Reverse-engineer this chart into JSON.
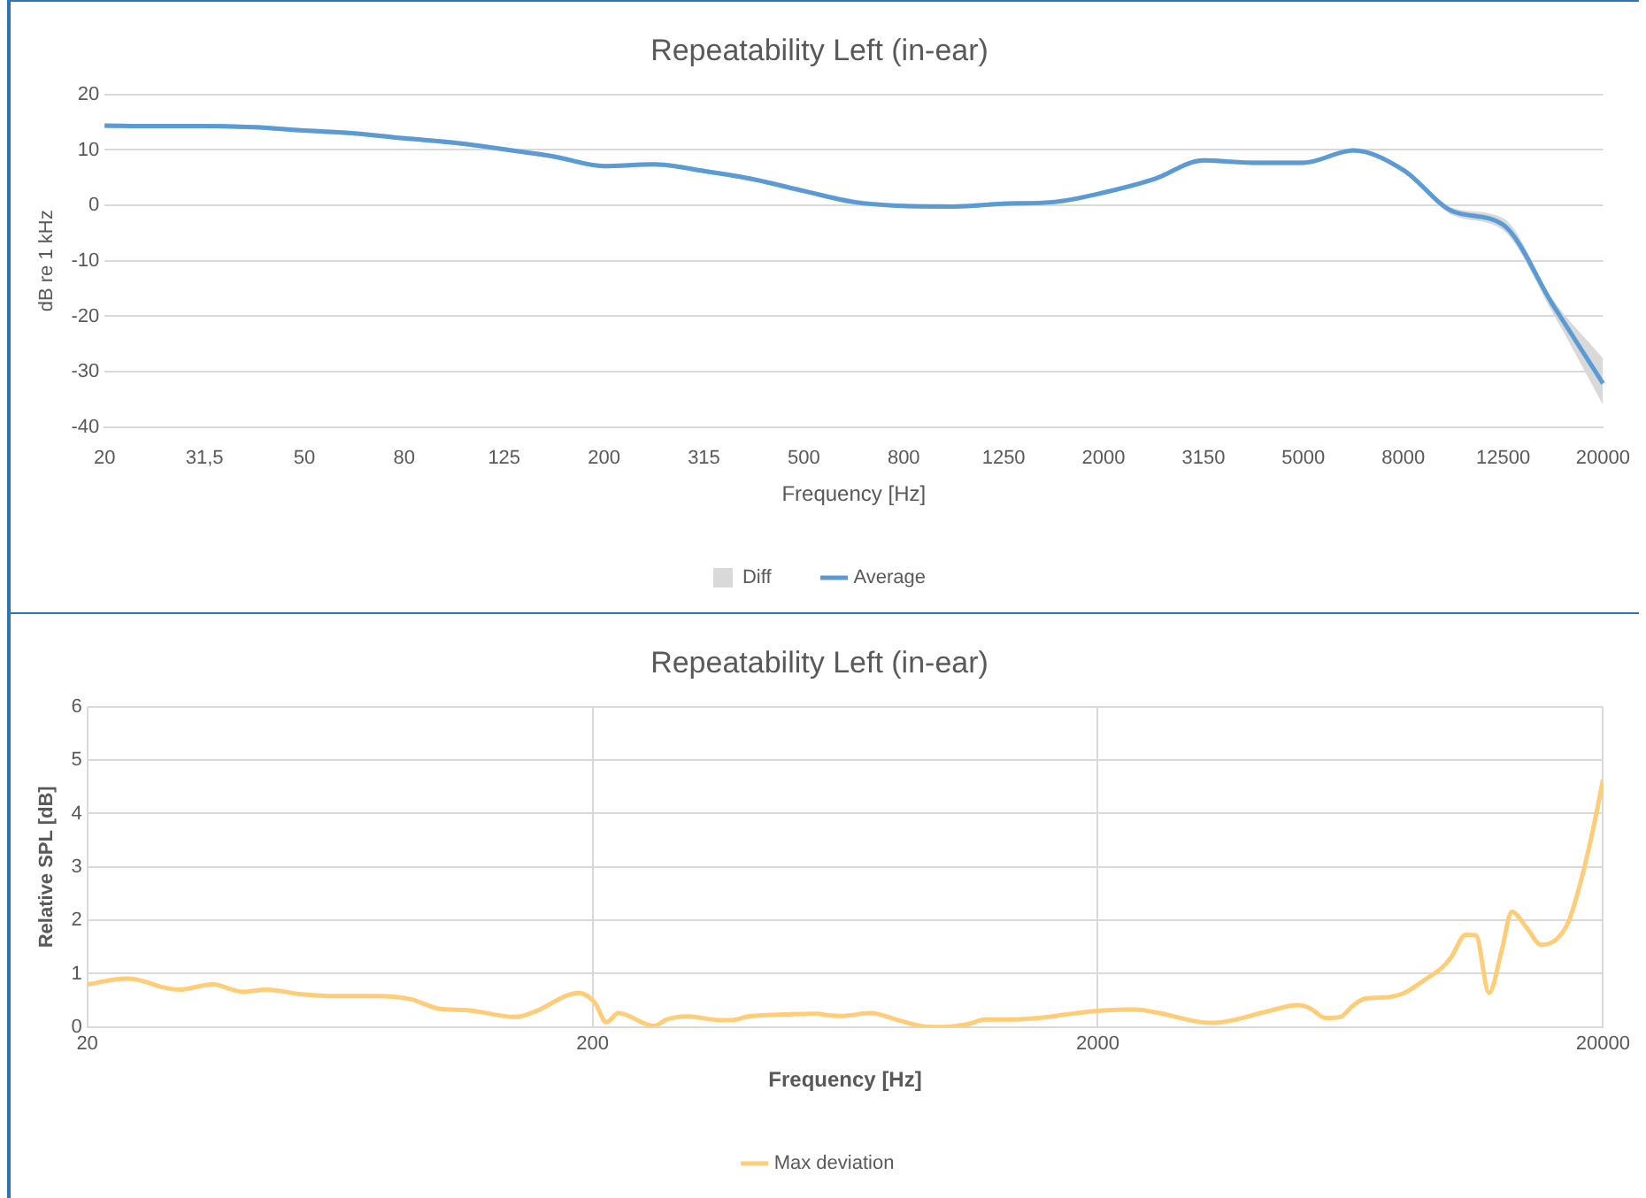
{
  "chart_data": [
    {
      "type": "line",
      "title": "Repeatability Left (in-ear)",
      "xlabel": "Frequency [Hz]",
      "ylabel": "dB re 1 kHz",
      "categories": [
        "20",
        null,
        "31,5",
        null,
        "50",
        null,
        "80",
        null,
        "125",
        null,
        "200",
        null,
        "315",
        null,
        "500",
        null,
        "800",
        null,
        "1250",
        null,
        "2000",
        null,
        "3150",
        null,
        "5000",
        null,
        "8000",
        null,
        "12500",
        null,
        "20000"
      ],
      "series": [
        {
          "name": "Diff",
          "type": "area",
          "color": "#d9d9d9",
          "values": [
            null,
            null,
            null,
            null,
            null,
            null,
            null,
            null,
            null,
            null,
            null,
            null,
            null,
            null,
            null,
            null,
            null,
            null,
            null,
            null,
            null,
            null,
            null,
            null,
            null,
            null,
            null,
            null,
            null,
            null,
            null
          ]
        },
        {
          "name": "Average",
          "type": "line",
          "color": "#5b9bd5",
          "values": [
            14.4,
            14.3,
            14.3,
            14.1,
            13.5,
            13.0,
            12.1,
            11.3,
            10.1,
            8.8,
            7.1,
            7.4,
            6.2,
            4.7,
            2.6,
            0.6,
            -0.1,
            -0.2,
            0.3,
            0.6,
            2.3,
            4.7,
            8.1,
            7.7,
            7.7,
            9.9,
            6.4,
            -1.1,
            -3.5,
            -18.0,
            -32.1
          ],
          "lower": [
            14.0,
            13.9,
            13.9,
            13.7,
            13.1,
            12.6,
            11.7,
            10.9,
            9.7,
            8.4,
            6.7,
            7.0,
            5.8,
            4.3,
            2.2,
            0.3,
            -0.5,
            -0.6,
            -0.1,
            0.2,
            1.9,
            4.3,
            7.7,
            7.3,
            7.3,
            9.5,
            5.9,
            -1.8,
            -4.5,
            -19.5,
            -36.0
          ],
          "upper": [
            14.8,
            14.7,
            14.7,
            14.5,
            13.9,
            13.4,
            12.5,
            11.7,
            10.5,
            9.2,
            7.5,
            7.8,
            6.6,
            5.1,
            3.0,
            1.1,
            0.3,
            0.2,
            0.7,
            1.0,
            2.7,
            5.1,
            8.5,
            8.1,
            8.1,
            10.3,
            6.9,
            -0.5,
            -2.3,
            -17.0,
            -27.6
          ]
        }
      ],
      "ylim": [
        -40,
        20
      ],
      "yticks": [
        -40,
        -30,
        -20,
        -10,
        0,
        10,
        20
      ],
      "grid": "y",
      "legend": "bottom"
    },
    {
      "type": "line",
      "title": "Repeatability Left (in-ear)",
      "xlabel": "Frequency [Hz]",
      "ylabel": "Relative SPL [dB]",
      "series": [
        {
          "name": "Max deviation",
          "color": "#ffcc77",
          "x": [
            20,
            23.8,
            25.1,
            28.4,
            30.4,
            35.4,
            40.6,
            45.3,
            52.6,
            62,
            75.2,
            87.4,
            100,
            112,
            141,
            153,
            188,
            202,
            213,
            225,
            265,
            280,
            308,
            359,
            379,
            406,
            434,
            556,
            587,
            621,
            711,
            805,
            910,
            988,
            1100,
            1200,
            1340,
            1530,
            1810,
            2040,
            2380,
            2620,
            3220,
            3400,
            3790,
            4350,
            4990,
            5270,
            5640,
            6040,
            6380,
            6740,
            7520,
            8050,
            8860,
            9620,
            10000,
            10700,
            11200,
            11900,
            12600,
            13200,
            14100,
            15100,
            16200,
            17100,
            18100,
            19100,
            20000
          ],
          "values": [
            0.8,
            0.91,
            0.89,
            0.74,
            0.7,
            0.8,
            0.66,
            0.7,
            0.62,
            0.58,
            0.58,
            0.52,
            0.34,
            0.32,
            0.19,
            0.28,
            0.64,
            0.46,
            0.09,
            0.26,
            0.02,
            0.14,
            0.2,
            0.13,
            0.13,
            0.2,
            0.22,
            0.25,
            0.22,
            0.21,
            0.26,
            0.13,
            0.01,
            0,
            0.05,
            0.14,
            0.14,
            0.17,
            0.26,
            0.31,
            0.33,
            0.27,
            0.09,
            0.08,
            0.15,
            0.3,
            0.41,
            0.35,
            0.17,
            0.19,
            0.39,
            0.53,
            0.56,
            0.63,
            0.88,
            1.12,
            1.3,
            1.73,
            1.72,
            0.64,
            1.43,
            2.16,
            1.87,
            1.54,
            1.65,
            1.98,
            2.75,
            3.69,
            4.63
          ]
        }
      ],
      "log": "x",
      "xlim": [
        20,
        20000
      ],
      "xticks": [
        20,
        200,
        2000,
        20000
      ],
      "ylim": [
        0,
        6
      ],
      "yticks": [
        0,
        1,
        2,
        3,
        4,
        5,
        6
      ],
      "grid": true,
      "legend": "bottom"
    }
  ]
}
